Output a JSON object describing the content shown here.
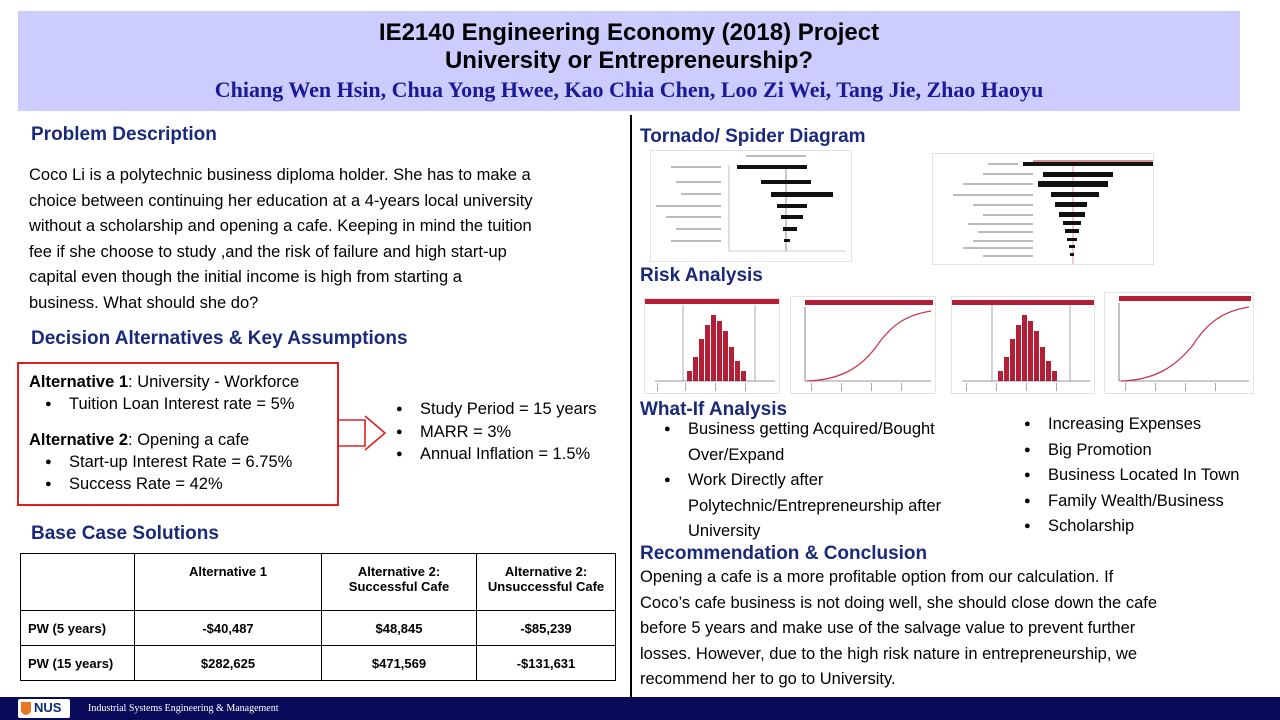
{
  "header": {
    "title_line1": "IE2140 Engineering Economy (2018) Project",
    "title_line2": "University or Entrepreneurship?",
    "authors": "Chiang Wen Hsin, Chua Yong Hwee, Kao Chia Chen, Loo Zi Wei, Tang Jie, Zhao Haoyu"
  },
  "problem": {
    "heading": "Problem Description",
    "lines": [
      "Coco Li is a polytechnic business diploma holder. She has to make a",
      "choice between continuing her education at a 4-years local university",
      "without a scholarship and opening a cafe. Keeping in mind the tuition",
      "fee if she choose to study ,and the risk of failure and high start-up",
      "capital even though the initial income is high from starting a",
      "business. What should she do?"
    ]
  },
  "decision": {
    "heading": "Decision Alternatives & Key Assumptions",
    "alt1_title": "Alternative 1",
    "alt1_rest": ": University - Workforce",
    "alt1_bullets": [
      "Tuition Loan Interest rate = 5%"
    ],
    "alt2_title": "Alternative 2",
    "alt2_rest": ": Opening a cafe",
    "alt2_bullets": [
      "Start-up Interest Rate = 6.75%",
      "Success Rate = 42%"
    ],
    "assumptions": [
      "Study Period = 15 years",
      "MARR = 3%",
      "Annual Inflation = 1.5%"
    ]
  },
  "base_case": {
    "heading": "Base Case Solutions",
    "headers": [
      "",
      "Alternative 1",
      "Alternative 2:\nSuccessful Cafe",
      "Alternative 2:\nUnsuccessful Cafe"
    ],
    "rows": [
      [
        "PW (5 years)",
        "-$40,487",
        "$48,845",
        "-$85,239"
      ],
      [
        "PW (15 years)",
        "$282,625",
        "$471,569",
        "-$131,631"
      ]
    ]
  },
  "tornado": {
    "heading": "Tornado/ Spider Diagram"
  },
  "risk": {
    "heading": "Risk Analysis"
  },
  "whatif": {
    "heading": "What-If Analysis",
    "left_items": [
      [
        "Business getting Acquired/Bought",
        "Over/Expand"
      ],
      [
        "Work Directly after",
        "Polytechnic/Entrepreneurship after",
        "University"
      ]
    ],
    "right_items": [
      "Increasing Expenses",
      "Big Promotion",
      "Business Located In Town",
      "Family Wealth/Business",
      "Scholarship"
    ]
  },
  "conclusion": {
    "heading": "Recommendation & Conclusion",
    "lines": [
      "Opening a cafe is a more profitable option from our calculation. If",
      "Coco’s cafe business is not doing well, she should close down the cafe",
      "before 5 years and make use of the salvage value to prevent further",
      "losses. However, due to the high risk nature in entrepreneurship, we",
      "recommend her to go to University."
    ]
  },
  "footer": {
    "logo": "NUS",
    "dept": "Industrial Systems Engineering & Management"
  },
  "colors": {
    "header_bg": "#ccccff",
    "heading": "#1a2a7a",
    "authors": "#1a1a99",
    "footer_bg": "#0a0a5a",
    "box_border": "#e02020",
    "hist": "#b51f35"
  }
}
